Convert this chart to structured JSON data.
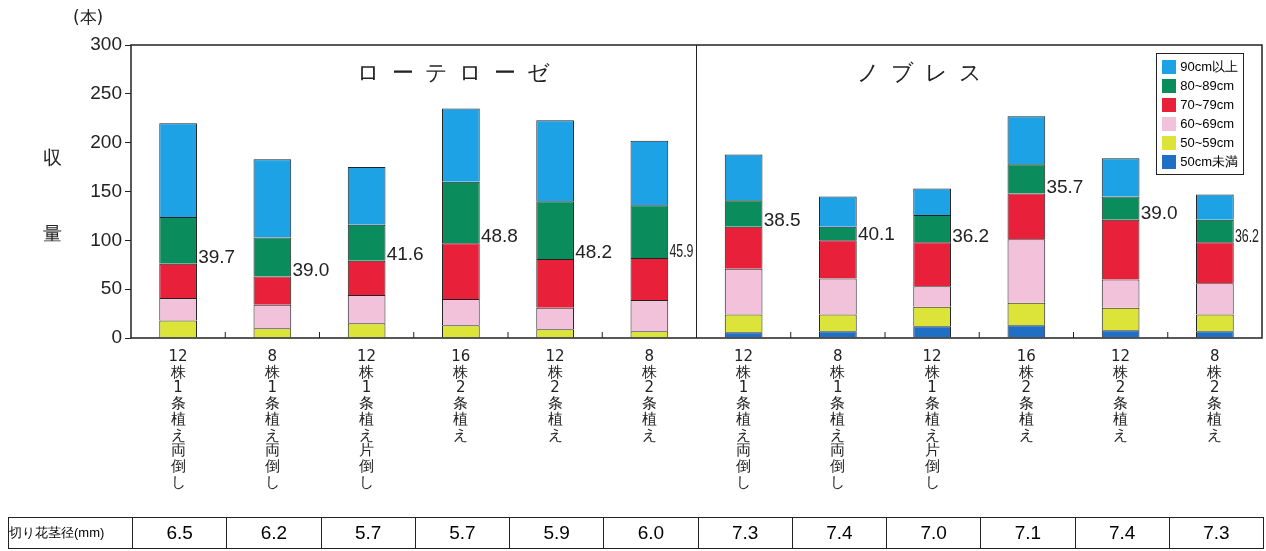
{
  "chart_data": {
    "type": "bar",
    "stacked": true,
    "ylabel": "収量",
    "legend": "top right",
    "grid": false,
    "categories": [
      "12株1条植え両倒し",
      "8株1条植え両倒し",
      "12株1条植え片倒し",
      "16株2条植え",
      "12株2条植え",
      "8株2条植え",
      "12株1条植え両倒し",
      "8株1条植え両倒し",
      "12株1条植え片倒し",
      "16株2条植え",
      "12株2条植え",
      "8株2条植え"
    ],
    "ylim": [
      0,
      300
    ],
    "yticks": [
      0,
      50,
      100,
      150,
      200,
      250,
      300
    ],
    "series": [
      {
        "name": "50cm未満",
        "color": "#1f6fc4",
        "values": [
          0,
          0,
          0,
          0,
          0,
          0,
          6,
          7,
          12,
          13,
          8,
          7
        ]
      },
      {
        "name": "50~59cm",
        "color": "#dce43a",
        "values": [
          18,
          10,
          15,
          13,
          9,
          7,
          18,
          17,
          20,
          23,
          23,
          17
        ]
      },
      {
        "name": "60~69cm",
        "color": "#f2c2da",
        "values": [
          23,
          24,
          29,
          27,
          22,
          32,
          47,
          37,
          21,
          65,
          29,
          32
        ]
      },
      {
        "name": "70~79cm",
        "color": "#e8203a",
        "values": [
          35,
          29,
          35,
          57,
          50,
          43,
          43,
          39,
          45,
          47,
          61,
          42
        ]
      },
      {
        "name": "80~89cm",
        "color": "#0b8c5c",
        "values": [
          48,
          40,
          37,
          63,
          59,
          54,
          27,
          14,
          28,
          30,
          24,
          23
        ]
      },
      {
        "name": "90cm以上",
        "color": "#1ea2e6",
        "values": [
          96,
          80,
          59,
          75,
          83,
          66,
          47,
          31,
          27,
          49,
          39,
          26
        ]
      }
    ],
    "annotations": [
      "(本)",
      "ローテローゼ",
      "ノブレス",
      "切り花茎径(mm)",
      "6.5",
      "6.2",
      "5.7",
      "5.7",
      "5.9",
      "6.0",
      "7.3",
      "7.4",
      "7.0",
      "7.1",
      "7.4",
      "7.3",
      "39.7",
      "39.0",
      "41.6",
      "48.8",
      "48.2",
      "45.9",
      "38.5",
      "40.1",
      "36.2",
      "35.7",
      "39.0",
      "36.2"
    ]
  }
}
